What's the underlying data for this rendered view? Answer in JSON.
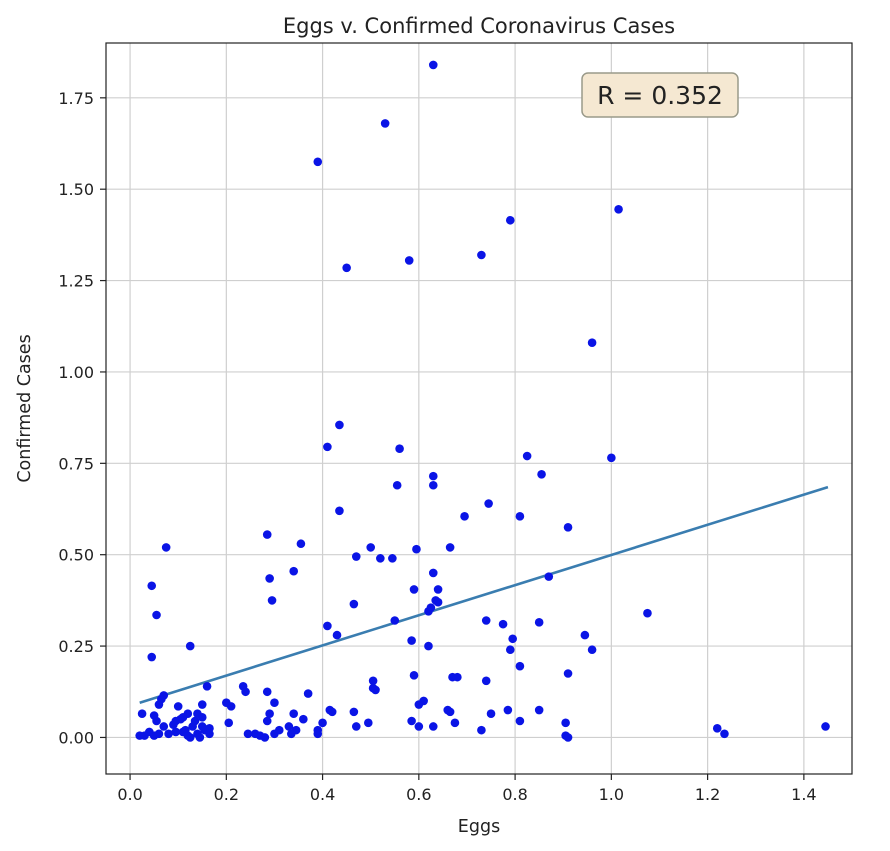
{
  "chart_data": {
    "type": "scatter",
    "title": "Eggs v. Confirmed Coronavirus Cases",
    "xlabel": "Eggs",
    "ylabel": "Confirmed Cases",
    "xlim": [
      -0.05,
      1.5
    ],
    "ylim": [
      -0.1,
      1.9
    ],
    "grid": true,
    "x_ticks": [
      0.0,
      0.2,
      0.4,
      0.6,
      0.8,
      1.0,
      1.2,
      1.4
    ],
    "x_tick_labels": [
      "0.0",
      "0.2",
      "0.4",
      "0.6",
      "0.8",
      "1.0",
      "1.2",
      "1.4"
    ],
    "y_ticks": [
      0.0,
      0.25,
      0.5,
      0.75,
      1.0,
      1.25,
      1.5,
      1.75
    ],
    "y_tick_labels": [
      "0.00",
      "0.25",
      "0.50",
      "0.75",
      "1.00",
      "1.25",
      "1.50",
      "1.75"
    ],
    "annotation": {
      "text": "R = 0.352",
      "position": "top-right"
    },
    "colors": {
      "points": "#0a14e6",
      "trend": "#3a7db0",
      "grid": "#cfcfcf",
      "annot_bg": "#f5e8d2",
      "annot_border": "#9a9a8a"
    },
    "trend_line": {
      "x": [
        0.02,
        1.45
      ],
      "y": [
        0.095,
        0.685
      ]
    },
    "points": [
      [
        0.63,
        1.84
      ],
      [
        0.53,
        1.68
      ],
      [
        0.39,
        1.575
      ],
      [
        0.45,
        1.285
      ],
      [
        0.58,
        1.305
      ],
      [
        0.73,
        1.32
      ],
      [
        0.79,
        1.415
      ],
      [
        1.015,
        1.445
      ],
      [
        0.96,
        1.08
      ],
      [
        0.435,
        0.855
      ],
      [
        0.41,
        0.795
      ],
      [
        0.56,
        0.79
      ],
      [
        0.63,
        0.715
      ],
      [
        0.63,
        0.69
      ],
      [
        0.555,
        0.69
      ],
      [
        0.825,
        0.77
      ],
      [
        0.855,
        0.72
      ],
      [
        1.0,
        0.765
      ],
      [
        0.435,
        0.62
      ],
      [
        0.745,
        0.64
      ],
      [
        0.695,
        0.605
      ],
      [
        0.81,
        0.605
      ],
      [
        0.91,
        0.575
      ],
      [
        0.285,
        0.555
      ],
      [
        0.355,
        0.53
      ],
      [
        0.075,
        0.52
      ],
      [
        0.5,
        0.52
      ],
      [
        0.595,
        0.515
      ],
      [
        0.665,
        0.52
      ],
      [
        0.47,
        0.495
      ],
      [
        0.52,
        0.49
      ],
      [
        0.545,
        0.49
      ],
      [
        0.34,
        0.455
      ],
      [
        0.63,
        0.45
      ],
      [
        0.29,
        0.435
      ],
      [
        0.87,
        0.44
      ],
      [
        0.045,
        0.415
      ],
      [
        0.59,
        0.405
      ],
      [
        0.64,
        0.405
      ],
      [
        0.635,
        0.375
      ],
      [
        0.64,
        0.37
      ],
      [
        0.295,
        0.375
      ],
      [
        0.465,
        0.365
      ],
      [
        0.625,
        0.355
      ],
      [
        0.62,
        0.345
      ],
      [
        0.055,
        0.335
      ],
      [
        1.075,
        0.34
      ],
      [
        0.55,
        0.32
      ],
      [
        0.74,
        0.32
      ],
      [
        0.775,
        0.31
      ],
      [
        0.85,
        0.315
      ],
      [
        0.41,
        0.305
      ],
      [
        0.43,
        0.28
      ],
      [
        0.945,
        0.28
      ],
      [
        0.795,
        0.27
      ],
      [
        0.585,
        0.265
      ],
      [
        0.125,
        0.25
      ],
      [
        0.62,
        0.25
      ],
      [
        0.96,
        0.24
      ],
      [
        0.79,
        0.24
      ],
      [
        0.045,
        0.22
      ],
      [
        0.81,
        0.195
      ],
      [
        0.91,
        0.175
      ],
      [
        0.59,
        0.17
      ],
      [
        0.67,
        0.165
      ],
      [
        0.68,
        0.165
      ],
      [
        0.505,
        0.155
      ],
      [
        0.74,
        0.155
      ],
      [
        0.16,
        0.14
      ],
      [
        0.235,
        0.14
      ],
      [
        0.505,
        0.135
      ],
      [
        0.51,
        0.13
      ],
      [
        0.24,
        0.125
      ],
      [
        0.285,
        0.125
      ],
      [
        0.37,
        0.12
      ],
      [
        0.07,
        0.115
      ],
      [
        0.065,
        0.105
      ],
      [
        0.61,
        0.1
      ],
      [
        0.2,
        0.095
      ],
      [
        0.3,
        0.095
      ],
      [
        0.21,
        0.085
      ],
      [
        0.6,
        0.09
      ],
      [
        0.1,
        0.085
      ],
      [
        0.15,
        0.09
      ],
      [
        0.06,
        0.09
      ],
      [
        0.415,
        0.075
      ],
      [
        0.42,
        0.07
      ],
      [
        0.66,
        0.075
      ],
      [
        0.665,
        0.07
      ],
      [
        0.785,
        0.075
      ],
      [
        0.85,
        0.075
      ],
      [
        0.025,
        0.065
      ],
      [
        0.12,
        0.065
      ],
      [
        0.14,
        0.065
      ],
      [
        0.29,
        0.065
      ],
      [
        0.34,
        0.065
      ],
      [
        0.465,
        0.07
      ],
      [
        0.75,
        0.065
      ],
      [
        0.05,
        0.06
      ],
      [
        0.15,
        0.055
      ],
      [
        0.11,
        0.055
      ],
      [
        0.105,
        0.05
      ],
      [
        0.36,
        0.05
      ],
      [
        0.285,
        0.045
      ],
      [
        0.135,
        0.045
      ],
      [
        0.095,
        0.045
      ],
      [
        0.055,
        0.045
      ],
      [
        0.585,
        0.045
      ],
      [
        0.81,
        0.045
      ],
      [
        0.205,
        0.04
      ],
      [
        0.4,
        0.04
      ],
      [
        0.495,
        0.04
      ],
      [
        0.675,
        0.04
      ],
      [
        0.905,
        0.04
      ],
      [
        0.09,
        0.035
      ],
      [
        0.07,
        0.03
      ],
      [
        0.13,
        0.03
      ],
      [
        0.15,
        0.03
      ],
      [
        0.165,
        0.025
      ],
      [
        0.33,
        0.03
      ],
      [
        0.47,
        0.03
      ],
      [
        0.6,
        0.03
      ],
      [
        0.63,
        0.03
      ],
      [
        0.73,
        0.02
      ],
      [
        1.22,
        0.025
      ],
      [
        1.445,
        0.03
      ],
      [
        0.115,
        0.02
      ],
      [
        0.155,
        0.02
      ],
      [
        0.31,
        0.02
      ],
      [
        0.345,
        0.02
      ],
      [
        0.39,
        0.02
      ],
      [
        0.04,
        0.015
      ],
      [
        0.06,
        0.01
      ],
      [
        0.08,
        0.01
      ],
      [
        0.095,
        0.015
      ],
      [
        0.11,
        0.015
      ],
      [
        0.14,
        0.01
      ],
      [
        0.165,
        0.01
      ],
      [
        0.26,
        0.01
      ],
      [
        0.245,
        0.01
      ],
      [
        0.27,
        0.005
      ],
      [
        0.3,
        0.01
      ],
      [
        0.335,
        0.01
      ],
      [
        0.02,
        0.005
      ],
      [
        0.03,
        0.005
      ],
      [
        0.05,
        0.005
      ],
      [
        0.125,
        0.0
      ],
      [
        0.145,
        0.0
      ],
      [
        0.28,
        0.0
      ],
      [
        0.39,
        0.01
      ],
      [
        0.905,
        0.005
      ],
      [
        1.235,
        0.01
      ],
      [
        0.91,
        0.0
      ],
      [
        0.12,
        0.005
      ]
    ]
  }
}
